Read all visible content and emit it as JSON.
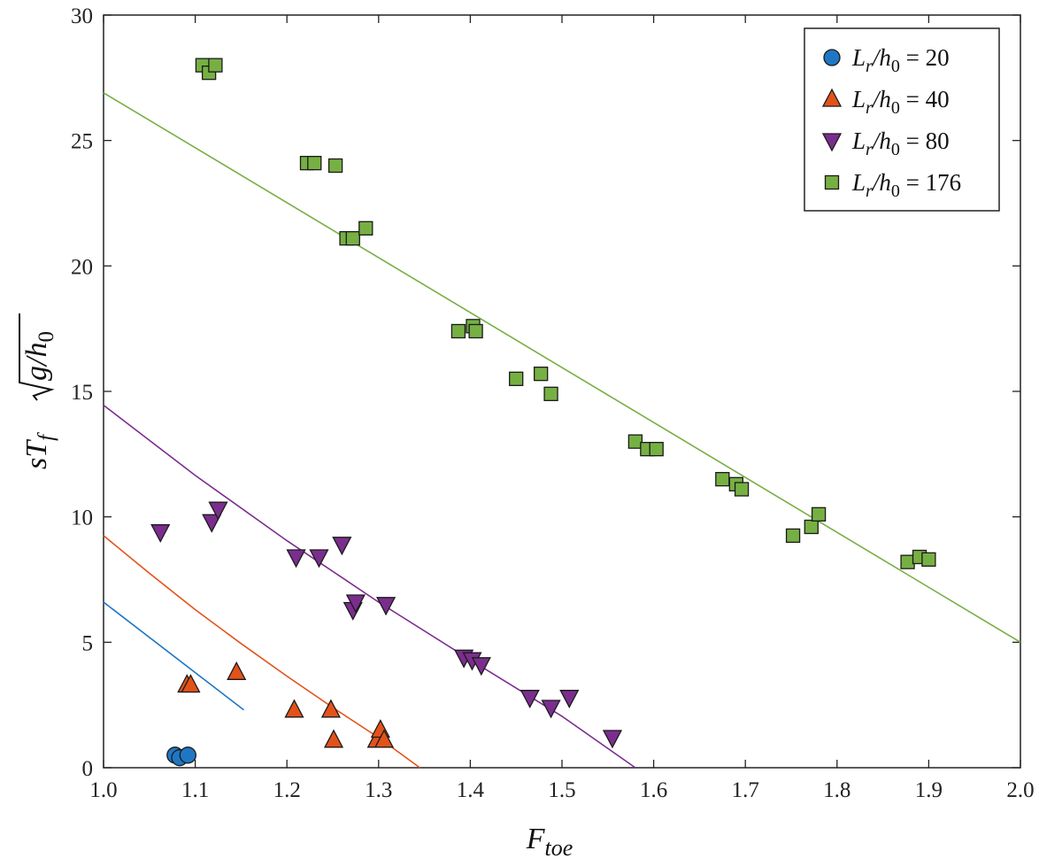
{
  "chart_data": {
    "type": "scatter",
    "xlabel": "F",
    "xlabel_sub": "toe",
    "ylabel": "sT",
    "ylabel_sub": "f",
    "ylabel_radicand": "g/h",
    "ylabel_radicand_sub": "0",
    "xlim": [
      1.0,
      2.0
    ],
    "ylim": [
      0,
      30
    ],
    "xticks": [
      "1.0",
      "1.1",
      "1.2",
      "1.3",
      "1.4",
      "1.5",
      "1.6",
      "1.7",
      "1.8",
      "1.9",
      "2.0"
    ],
    "yticks": [
      "0",
      "5",
      "10",
      "15",
      "20",
      "25",
      "30"
    ],
    "legend_position": "top-right",
    "series": [
      {
        "name": "L_r/h_0 = 20",
        "label_main": "L",
        "label_sub1": "r",
        "label_mid": "/h",
        "label_sub2": "0",
        "label_value": "= 20",
        "marker": "circle",
        "color": "#1f77c4",
        "points": [
          [
            1.078,
            0.5
          ],
          [
            1.083,
            0.4
          ],
          [
            1.092,
            0.5
          ]
        ],
        "fit": [
          [
            1.0,
            6.6
          ],
          [
            1.153,
            2.3
          ]
        ],
        "fit_color": "#1f77c4"
      },
      {
        "name": "L_r/h_0 = 40",
        "label_main": "L",
        "label_sub1": "r",
        "label_mid": "/h",
        "label_sub2": "0",
        "label_value": "= 40",
        "marker": "triangle-up",
        "color": "#e2531a",
        "points": [
          [
            1.091,
            3.3
          ],
          [
            1.095,
            3.3
          ],
          [
            1.145,
            3.8
          ],
          [
            1.208,
            2.3
          ],
          [
            1.248,
            2.3
          ],
          [
            1.251,
            1.1
          ],
          [
            1.298,
            1.1
          ],
          [
            1.302,
            1.5
          ],
          [
            1.306,
            1.1
          ]
        ],
        "fit": [
          [
            1.0,
            9.25
          ],
          [
            1.05,
            7.75
          ],
          [
            1.1,
            6.3
          ],
          [
            1.15,
            4.95
          ],
          [
            1.2,
            3.65
          ],
          [
            1.25,
            2.4
          ],
          [
            1.3,
            1.2
          ],
          [
            1.345,
            0.0
          ]
        ],
        "fit_color": "#e2531a"
      },
      {
        "name": "L_r/h_0 = 80",
        "label_main": "L",
        "label_sub1": "r",
        "label_mid": "/h",
        "label_sub2": "0",
        "label_value": "= 80",
        "marker": "triangle-down",
        "color": "#7b2d8e",
        "points": [
          [
            1.062,
            9.4
          ],
          [
            1.118,
            9.8
          ],
          [
            1.125,
            10.3
          ],
          [
            1.21,
            8.4
          ],
          [
            1.235,
            8.4
          ],
          [
            1.26,
            8.9
          ],
          [
            1.272,
            6.3
          ],
          [
            1.275,
            6.6
          ],
          [
            1.308,
            6.5
          ],
          [
            1.393,
            4.4
          ],
          [
            1.402,
            4.3
          ],
          [
            1.412,
            4.1
          ],
          [
            1.465,
            2.8
          ],
          [
            1.488,
            2.4
          ],
          [
            1.508,
            2.8
          ],
          [
            1.555,
            1.2
          ]
        ],
        "fit": [
          [
            1.0,
            14.45
          ],
          [
            1.1,
            11.65
          ],
          [
            1.2,
            9.05
          ],
          [
            1.3,
            6.6
          ],
          [
            1.4,
            4.3
          ],
          [
            1.5,
            2.05
          ],
          [
            1.58,
            0.0
          ]
        ],
        "fit_color": "#7b2d8e"
      },
      {
        "name": "L_r/h_0 = 176",
        "label_main": "L",
        "label_sub1": "r",
        "label_mid": "/h",
        "label_sub2": "0",
        "label_value": "= 176",
        "marker": "square",
        "color": "#76b043",
        "points": [
          [
            1.108,
            28.0
          ],
          [
            1.115,
            27.7
          ],
          [
            1.122,
            28.0
          ],
          [
            1.222,
            24.1
          ],
          [
            1.23,
            24.1
          ],
          [
            1.253,
            24.0
          ],
          [
            1.265,
            21.1
          ],
          [
            1.272,
            21.1
          ],
          [
            1.286,
            21.5
          ],
          [
            1.387,
            17.4
          ],
          [
            1.403,
            17.6
          ],
          [
            1.406,
            17.4
          ],
          [
            1.45,
            15.5
          ],
          [
            1.477,
            15.7
          ],
          [
            1.488,
            14.9
          ],
          [
            1.58,
            13.0
          ],
          [
            1.593,
            12.7
          ],
          [
            1.603,
            12.7
          ],
          [
            1.675,
            11.5
          ],
          [
            1.69,
            11.3
          ],
          [
            1.696,
            11.1
          ],
          [
            1.752,
            9.25
          ],
          [
            1.772,
            9.6
          ],
          [
            1.78,
            10.1
          ],
          [
            1.877,
            8.2
          ],
          [
            1.89,
            8.4
          ],
          [
            1.9,
            8.3
          ]
        ],
        "fit": [
          [
            1.0,
            26.9
          ],
          [
            2.0,
            5.0
          ]
        ],
        "fit_color": "#76b043"
      }
    ]
  }
}
